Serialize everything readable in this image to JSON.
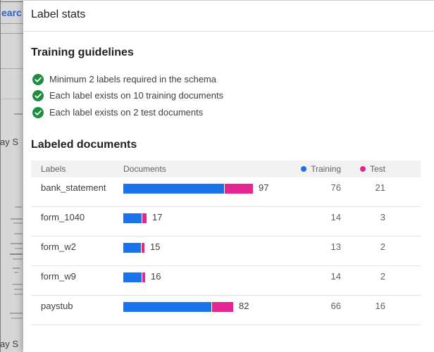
{
  "colors": {
    "training": "#1a73e8",
    "test": "#e52592",
    "success": "#1e8e3e"
  },
  "background": {
    "search_text": "earc",
    "doc_title_top": "ay S",
    "doc_title_bottom": "ay S"
  },
  "panel": {
    "title": "Label stats",
    "guidelines": {
      "heading": "Training guidelines",
      "items": [
        "Minimum 2 labels required in the schema",
        "Each label exists on 10 training documents",
        "Each label exists on 2 test documents"
      ]
    },
    "labeled_documents": {
      "heading": "Labeled documents",
      "table": {
        "columns": {
          "labels": "Labels",
          "documents": "Documents",
          "training": "Training",
          "test": "Test"
        },
        "rows": [
          {
            "label": "bank_statement",
            "total": 97,
            "training": 76,
            "test": 21
          },
          {
            "label": "form_1040",
            "total": 17,
            "training": 14,
            "test": 3
          },
          {
            "label": "form_w2",
            "total": 15,
            "training": 13,
            "test": 2
          },
          {
            "label": "form_w9",
            "total": 16,
            "training": 14,
            "test": 2
          },
          {
            "label": "paystub",
            "total": 82,
            "training": 66,
            "test": 16
          }
        ]
      }
    }
  }
}
